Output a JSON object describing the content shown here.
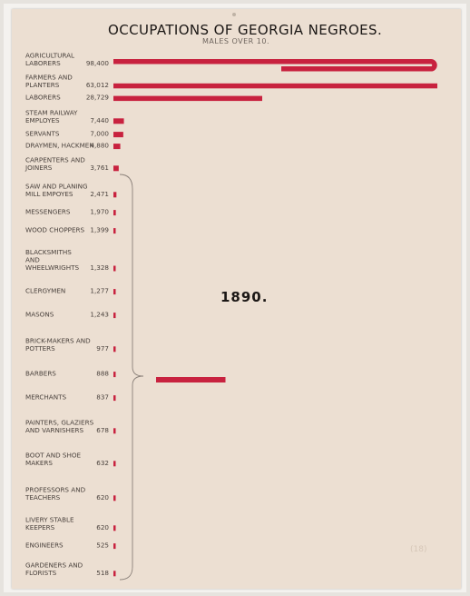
{
  "title": "OCCUPATIONS OF GEORGIA NEGROES.",
  "subtitle": "MALES OVER 10.",
  "year_label": "1890.",
  "stamp_text": "(18)",
  "colors": {
    "bar": "#c8223f",
    "paper": "#ecdfd2",
    "ink": "#1b1715"
  },
  "chart_data": {
    "type": "bar",
    "orientation": "horizontal",
    "title": "OCCUPATIONS OF GEORGIA NEGROES.",
    "subtitle": "MALES OVER 10.",
    "categories": [
      [
        "AGRICULTURAL",
        "LABORERS"
      ],
      [
        "FARMERS AND",
        "PLANTERS"
      ],
      [
        "LABORERS"
      ],
      [
        "STEAM RAILWAY",
        "EMPLOYES"
      ],
      [
        "SERVANTS"
      ],
      [
        "DRAYMEN, HACKMEN"
      ],
      [
        "CARPENTERS AND",
        "JOINERS"
      ],
      [
        "SAW AND PLANING",
        "MILL EMPOYES"
      ],
      [
        "MESSENGERS"
      ],
      [
        "WOOD CHOPPERS"
      ],
      [
        "BLACKSMITHS",
        "AND",
        "WHEELWRIGHTS"
      ],
      [
        "CLERGYMEN"
      ],
      [
        "MASONS"
      ],
      [
        "BRICK-MAKERS AND",
        "POTTERS"
      ],
      [
        "BARBERS"
      ],
      [
        "MERCHANTS"
      ],
      [
        "PAINTERS, GLAZIERS",
        "AND VARNISHERS"
      ],
      [
        "BOOT AND SHOE",
        "MAKERS"
      ],
      [
        "PROFESSORS AND",
        "TEACHERS"
      ],
      [
        "LIVERY STABLE",
        "KEEPERS"
      ],
      [
        "ENGINEERS"
      ],
      [
        "GARDENERS AND",
        "FLORISTS"
      ]
    ],
    "value_labels": [
      "98,400",
      "63,012",
      "28,729",
      "7,440",
      "7,000",
      "4,880",
      "3,761",
      "2,471",
      "1,970",
      "1,399",
      "1,328",
      "1,277",
      "1,243",
      "977",
      "888",
      "837",
      "678",
      "632",
      "620",
      "620",
      "525",
      "518"
    ],
    "values": [
      98400,
      63012,
      28729,
      7440,
      7000,
      4880,
      3761,
      2471,
      1970,
      1399,
      1328,
      1277,
      1243,
      977,
      888,
      837,
      678,
      632,
      620,
      620,
      525,
      518
    ],
    "grouped_overflow": {
      "description_range": "SAW AND PLANING MILL EMPOYES to GARDENERS AND FLORISTS",
      "value": 17000
    },
    "annotation": "1890."
  }
}
